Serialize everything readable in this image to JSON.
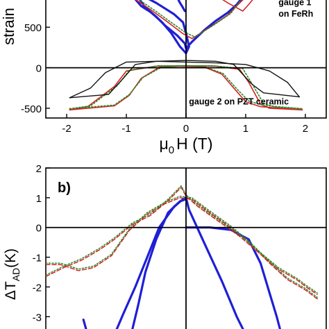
{
  "chart_data": [
    {
      "type": "line",
      "xlabel_main": "μ",
      "xlabel_sub": "0",
      "xlabel_rest": "H (T)",
      "ylabel": "strain",
      "xlim": [
        -2.35,
        2.35
      ],
      "ylim": [
        -620,
        870
      ],
      "xticks": [
        -2,
        -1,
        0,
        1,
        2
      ],
      "xtick_labels": [
        "-2",
        "-1",
        "0",
        "1",
        "2"
      ],
      "yticks": [
        -500,
        0,
        500
      ],
      "ytick_labels": [
        "-500",
        "0",
        "500"
      ],
      "annotations": [
        {
          "text": "gauge 1",
          "x": 1.55,
          "y": 770
        },
        {
          "text": "on FeRh",
          "x": 1.55,
          "y": 630
        },
        {
          "text": "gauge 2 on PZT ceramic",
          "x": 0.05,
          "y": -455
        }
      ],
      "series": [
        {
          "color": "#1f1fd6",
          "dash": "solid",
          "width": 3.2,
          "segments": [
            [
              [
                -0.88,
                870
              ],
              [
                -0.75,
                760
              ],
              [
                -0.6,
                690
              ],
              [
                -0.5,
                630
              ],
              [
                -0.35,
                520
              ],
              [
                -0.15,
                400
              ],
              [
                -0.02,
                300
              ],
              [
                0.0,
                240
              ],
              [
                0.1,
                320
              ],
              [
                0.3,
                460
              ],
              [
                0.5,
                580
              ],
              [
                0.7,
                680
              ],
              [
                0.85,
                780
              ],
              [
                0.95,
                870
              ]
            ],
            [
              [
                -0.68,
                870
              ],
              [
                -0.5,
                800
              ],
              [
                -0.35,
                730
              ],
              [
                -0.2,
                660
              ],
              [
                -0.05,
                560
              ],
              [
                0.0,
                430
              ],
              [
                0.05,
                260
              ],
              [
                0.0,
                180
              ],
              [
                -0.1,
                260
              ],
              [
                -0.25,
                430
              ],
              [
                -0.4,
                560
              ],
              [
                -0.55,
                660
              ],
              [
                -0.7,
                760
              ],
              [
                -0.8,
                870
              ]
            ],
            [
              [
                -0.15,
                870
              ],
              [
                -0.1,
                800
              ],
              [
                -0.05,
                740
              ],
              [
                -0.02,
                700
              ]
            ]
          ]
        },
        {
          "color": "#d62020",
          "dash": "solid",
          "width": 1.6,
          "segments": [
            [
              [
                -0.9,
                870
              ],
              [
                -0.6,
                720
              ],
              [
                -0.3,
                560
              ],
              [
                -0.05,
                420
              ],
              [
                0.1,
                360
              ],
              [
                0.4,
                500
              ],
              [
                0.7,
                650
              ],
              [
                0.9,
                800
              ],
              [
                1.0,
                870
              ]
            ],
            [
              [
                0.55,
                870
              ],
              [
                0.7,
                800
              ],
              [
                0.85,
                740
              ],
              [
                0.95,
                700
              ],
              [
                1.05,
                780
              ],
              [
                1.15,
                870
              ]
            ],
            [
              [
                -1.95,
                -520
              ],
              [
                -1.2,
                -470
              ],
              [
                -0.95,
                -340
              ],
              [
                -0.75,
                -130
              ],
              [
                -0.45,
                5
              ],
              [
                -0.1,
                20
              ],
              [
                0.3,
                10
              ],
              [
                0.6,
                -80
              ],
              [
                0.8,
                -250
              ],
              [
                1.0,
                -420
              ],
              [
                1.25,
                -480
              ],
              [
                1.95,
                -520
              ]
            ],
            [
              [
                -1.95,
                -520
              ],
              [
                -1.65,
                -480
              ],
              [
                -1.2,
                -230
              ],
              [
                -1.0,
                -40
              ],
              [
                -0.5,
                20
              ],
              [
                0.0,
                25
              ],
              [
                0.5,
                20
              ],
              [
                0.9,
                -20
              ],
              [
                1.05,
                -180
              ],
              [
                1.25,
                -450
              ],
              [
                1.4,
                -500
              ],
              [
                1.95,
                -520
              ]
            ]
          ]
        },
        {
          "color": "#2a8a2a",
          "dash": "dotted",
          "width": 1.6,
          "segments": [
            [
              [
                -0.85,
                870
              ],
              [
                -0.55,
                720
              ],
              [
                -0.25,
                560
              ],
              [
                0.0,
                430
              ],
              [
                0.15,
                380
              ],
              [
                0.45,
                520
              ],
              [
                0.75,
                670
              ],
              [
                0.95,
                870
              ]
            ],
            [
              [
                -1.95,
                -505
              ],
              [
                -1.2,
                -460
              ],
              [
                -0.95,
                -330
              ],
              [
                -0.72,
                -120
              ],
              [
                -0.4,
                10
              ],
              [
                0.0,
                25
              ],
              [
                0.3,
                15
              ],
              [
                0.62,
                -70
              ],
              [
                0.85,
                -260
              ],
              [
                1.05,
                -410
              ],
              [
                1.3,
                -465
              ],
              [
                1.95,
                -505
              ]
            ],
            [
              [
                -1.95,
                -505
              ],
              [
                -1.6,
                -470
              ],
              [
                -1.15,
                -220
              ],
              [
                -0.95,
                -30
              ],
              [
                -0.45,
                25
              ],
              [
                0.45,
                25
              ],
              [
                0.95,
                -10
              ],
              [
                1.1,
                -190
              ],
              [
                1.3,
                -440
              ],
              [
                1.5,
                -485
              ],
              [
                1.95,
                -505
              ]
            ]
          ]
        },
        {
          "color": "#111111",
          "dash": "solid",
          "width": 1.4,
          "segments": [
            [
              [
                -1.95,
                -370
              ],
              [
                -1.3,
                -330
              ],
              [
                -1.05,
                -130
              ],
              [
                -0.85,
                40
              ],
              [
                -0.5,
                80
              ],
              [
                0.0,
                90
              ],
              [
                0.5,
                80
              ],
              [
                0.8,
                40
              ],
              [
                1.1,
                -200
              ],
              [
                1.3,
                -310
              ],
              [
                1.9,
                -360
              ]
            ],
            [
              [
                -1.95,
                -370
              ],
              [
                -1.6,
                -250
              ],
              [
                -1.35,
                -60
              ],
              [
                -1.0,
                70
              ],
              [
                -0.5,
                80
              ],
              [
                0.0,
                70
              ],
              [
                0.5,
                60
              ],
              [
                1.0,
                40
              ],
              [
                1.4,
                -40
              ],
              [
                1.7,
                -180
              ],
              [
                1.9,
                -360
              ]
            ]
          ]
        }
      ]
    },
    {
      "type": "line",
      "panel_label": "b)",
      "ylabel_main": "ΔT",
      "ylabel_sub": "AD",
      "ylabel_rest": "(K)",
      "xlim": [
        -2.35,
        2.35
      ],
      "ylim": [
        -3.6,
        2.0
      ],
      "yticks": [
        -3,
        -2,
        -1,
        0,
        1,
        2
      ],
      "ytick_labels": [
        "-3",
        "-2",
        "-1",
        "0",
        "1",
        "2"
      ],
      "series": [
        {
          "color": "#1f1fd6",
          "dash": "solid",
          "width": 3.2,
          "segments": [
            [
              [
                -1.2,
                -3.6
              ],
              [
                -1.05,
                -2.9
              ],
              [
                -0.85,
                -2.0
              ],
              [
                -0.65,
                -1.0
              ],
              [
                -0.45,
                0.0
              ],
              [
                -0.2,
                0.7
              ],
              [
                -0.05,
                0.95
              ],
              [
                0.0,
                1.0
              ],
              [
                0.05,
                0.6
              ],
              [
                0.3,
                -0.5
              ],
              [
                0.6,
                -1.8
              ],
              [
                0.85,
                -3.0
              ],
              [
                1.0,
                -3.6
              ]
            ],
            [
              [
                -0.92,
                -3.6
              ],
              [
                -0.8,
                -2.6
              ],
              [
                -0.68,
                -1.5
              ],
              [
                -0.5,
                -0.4
              ],
              [
                -0.3,
                0.5
              ],
              [
                -0.1,
                0.88
              ],
              [
                0.0,
                0.95
              ]
            ],
            [
              [
                0.0,
                0.0
              ],
              [
                0.4,
                0.0
              ],
              [
                0.75,
                -0.08
              ],
              [
                1.05,
                -0.4
              ],
              [
                1.25,
                -1.2
              ],
              [
                1.4,
                -2.2
              ],
              [
                1.52,
                -3.0
              ],
              [
                1.6,
                -3.6
              ]
            ],
            [
              [
                -1.65,
                -3.6
              ],
              [
                -1.72,
                -3.1
              ]
            ]
          ]
        },
        {
          "color": "#d62020",
          "dash": "dashed",
          "width": 1.5,
          "segments": [
            [
              [
                -2.35,
                -1.65
              ],
              [
                -2.05,
                -1.35
              ],
              [
                -1.75,
                -1.1
              ],
              [
                -1.45,
                -0.75
              ],
              [
                -1.2,
                -0.4
              ],
              [
                -0.9,
                0.1
              ],
              [
                -0.6,
                0.4
              ],
              [
                -0.3,
                0.9
              ],
              [
                -0.08,
                1.35
              ],
              [
                0.0,
                1.05
              ],
              [
                0.2,
                0.7
              ],
              [
                0.55,
                0.2
              ],
              [
                0.9,
                -0.3
              ],
              [
                1.25,
                -0.9
              ],
              [
                1.55,
                -1.4
              ],
              [
                1.85,
                -1.75
              ],
              [
                2.05,
                -2.05
              ],
              [
                2.2,
                -2.25
              ]
            ],
            [
              [
                -2.35,
                -1.25
              ],
              [
                -2.1,
                -1.25
              ],
              [
                -1.8,
                -1.45
              ],
              [
                -1.55,
                -1.35
              ],
              [
                -1.25,
                -0.95
              ],
              [
                -0.95,
                -0.1
              ],
              [
                -0.65,
                0.45
              ],
              [
                -0.35,
                0.8
              ],
              [
                -0.1,
                1.0
              ],
              [
                0.1,
                0.95
              ],
              [
                0.4,
                0.5
              ],
              [
                0.75,
                0.0
              ],
              [
                1.05,
                -0.5
              ],
              [
                1.4,
                -1.2
              ],
              [
                1.7,
                -1.75
              ],
              [
                2.0,
                -2.1
              ],
              [
                2.2,
                -2.4
              ]
            ]
          ]
        },
        {
          "color": "#2a8a2a",
          "dash": "dotted",
          "width": 1.5,
          "segments": [
            [
              [
                -2.35,
                -1.6
              ],
              [
                -2.05,
                -1.3
              ],
              [
                -1.75,
                -1.05
              ],
              [
                -1.45,
                -0.7
              ],
              [
                -1.2,
                -0.35
              ],
              [
                -0.9,
                0.15
              ],
              [
                -0.6,
                0.45
              ],
              [
                -0.3,
                0.95
              ],
              [
                -0.08,
                1.4
              ],
              [
                0.0,
                1.1
              ],
              [
                0.2,
                0.75
              ],
              [
                0.55,
                0.25
              ],
              [
                0.9,
                -0.25
              ],
              [
                1.25,
                -0.85
              ],
              [
                1.55,
                -1.35
              ],
              [
                1.85,
                -1.7
              ],
              [
                2.05,
                -2.0
              ],
              [
                2.2,
                -2.2
              ]
            ],
            [
              [
                -2.35,
                -1.2
              ],
              [
                -2.1,
                -1.2
              ],
              [
                -1.8,
                -1.4
              ],
              [
                -1.55,
                -1.3
              ],
              [
                -1.25,
                -0.9
              ],
              [
                -0.95,
                -0.05
              ],
              [
                -0.65,
                0.5
              ],
              [
                -0.35,
                0.85
              ],
              [
                -0.1,
                1.05
              ],
              [
                0.1,
                1.0
              ],
              [
                0.4,
                0.55
              ],
              [
                0.75,
                0.05
              ],
              [
                1.05,
                -0.45
              ],
              [
                1.4,
                -1.15
              ],
              [
                1.7,
                -1.7
              ],
              [
                2.0,
                -2.05
              ],
              [
                2.2,
                -2.35
              ]
            ]
          ]
        }
      ]
    }
  ]
}
